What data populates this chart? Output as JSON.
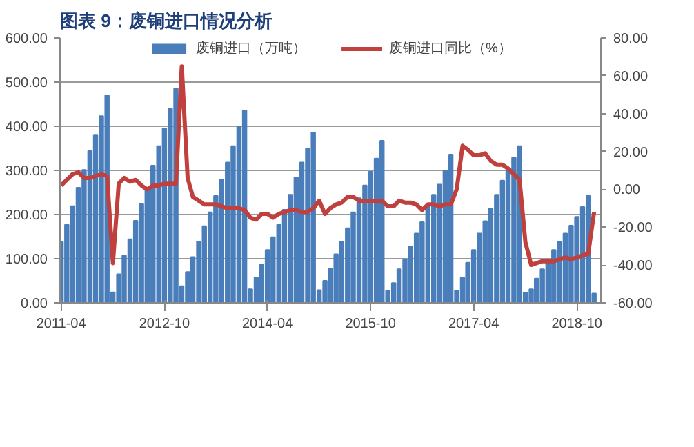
{
  "chart_data": {
    "type": "bar",
    "title": "图表 9：废铜进口情况分析",
    "x": [
      "2011-04",
      "2011-05",
      "2011-06",
      "2011-07",
      "2011-08",
      "2011-09",
      "2011-10",
      "2011-11",
      "2011-12",
      "2012-01",
      "2012-02",
      "2012-03",
      "2012-04",
      "2012-05",
      "2012-06",
      "2012-07",
      "2012-08",
      "2012-09",
      "2012-10",
      "2012-11",
      "2012-12",
      "2013-01",
      "2013-02",
      "2013-03",
      "2013-04",
      "2013-05",
      "2013-06",
      "2013-07",
      "2013-08",
      "2013-09",
      "2013-10",
      "2013-11",
      "2013-12",
      "2014-01",
      "2014-02",
      "2014-03",
      "2014-04",
      "2014-05",
      "2014-06",
      "2014-07",
      "2014-08",
      "2014-09",
      "2014-10",
      "2014-11",
      "2014-12",
      "2015-01",
      "2015-02",
      "2015-03",
      "2015-04",
      "2015-05",
      "2015-06",
      "2015-07",
      "2015-08",
      "2015-09",
      "2015-10",
      "2015-11",
      "2015-12",
      "2016-01",
      "2016-02",
      "2016-03",
      "2016-04",
      "2016-05",
      "2016-06",
      "2016-07",
      "2016-08",
      "2016-09",
      "2016-10",
      "2016-11",
      "2016-12",
      "2017-01",
      "2017-02",
      "2017-03",
      "2017-04",
      "2017-05",
      "2017-06",
      "2017-07",
      "2017-08",
      "2017-09",
      "2017-10",
      "2017-11",
      "2017-12",
      "2018-01",
      "2018-02",
      "2018-03",
      "2018-04",
      "2018-05",
      "2018-06",
      "2018-07",
      "2018-08",
      "2018-09",
      "2018-10",
      "2018-11",
      "2018-12",
      "2019-01"
    ],
    "series": [
      {
        "name": "废铜进口（万吨）",
        "color": "#4a7ebb",
        "values": [
          138,
          177,
          219,
          261,
          301,
          344,
          381,
          423,
          470,
          24,
          65,
          107,
          144,
          186,
          224,
          261,
          311,
          355,
          395,
          440,
          485,
          38,
          70,
          104,
          139,
          174,
          205,
          242,
          279,
          318,
          355,
          399,
          436,
          31,
          57,
          86,
          120,
          149,
          177,
          211,
          245,
          284,
          318,
          350,
          386,
          29,
          50,
          78,
          110,
          139,
          169,
          205,
          237,
          266,
          297,
          327,
          367,
          28,
          45,
          76,
          99,
          128,
          157,
          183,
          219,
          245,
          268,
          300,
          336,
          28,
          57,
          91,
          120,
          157,
          185,
          214,
          245,
          277,
          300,
          329,
          355,
          23,
          31,
          55,
          76,
          91,
          120,
          138,
          157,
          175,
          195,
          217,
          242,
          21
        ]
      },
      {
        "name": "废铜进口同比（%）",
        "type": "line",
        "axis": "y2",
        "color": "#c0403d",
        "values": [
          2,
          5,
          8,
          9,
          6,
          6,
          7,
          8,
          7,
          -39,
          3,
          6,
          4,
          5,
          2,
          0,
          2,
          2,
          3,
          3,
          3,
          65,
          6,
          -4,
          -6,
          -8,
          -8,
          -8,
          -9,
          -10,
          -10,
          -10,
          -11,
          -15,
          -16,
          -13,
          -13,
          -15,
          -13,
          -12,
          -11,
          -11,
          -12,
          -12,
          -10,
          -6,
          -13,
          -10,
          -8,
          -7,
          -4,
          -4,
          -6,
          -6,
          -6,
          -6,
          -6,
          -9,
          -9,
          -6,
          -7,
          -7,
          -8,
          -11,
          -8,
          -8,
          -9,
          -8,
          -8,
          0,
          23,
          21,
          18,
          18,
          19,
          15,
          13,
          13,
          11,
          8,
          5,
          -28,
          -40,
          -39,
          -38,
          -38,
          -38,
          -37,
          -36,
          -37,
          -36,
          -35,
          -34,
          -12
        ]
      }
    ],
    "xlim": [
      "2011-03-26",
      "2019-02-06"
    ],
    "xticks": [
      "2011-04",
      "2012-10",
      "2014-04",
      "2015-10",
      "2017-04",
      "2018-10"
    ],
    "ylim": [
      0,
      600
    ],
    "yticks": [
      {
        "value": 0,
        "label": "0.00"
      },
      {
        "value": 100,
        "label": "100.00"
      },
      {
        "value": 200,
        "label": "200.00"
      },
      {
        "value": 300,
        "label": "300.00"
      },
      {
        "value": 400,
        "label": "400.00"
      },
      {
        "value": 500,
        "label": "500.00"
      },
      {
        "value": 600,
        "label": "600.00"
      }
    ],
    "y2lim": [
      -60,
      80
    ],
    "y2ticks": [
      {
        "value": -60,
        "label": "-60.00"
      },
      {
        "value": -40,
        "label": "-40.00"
      },
      {
        "value": -20,
        "label": "-20.00"
      },
      {
        "value": 0,
        "label": "0.00"
      },
      {
        "value": 20,
        "label": "20.00"
      },
      {
        "value": 40,
        "label": "40.00"
      },
      {
        "value": 60,
        "label": "60.00"
      },
      {
        "value": 80,
        "label": "80.00"
      }
    ],
    "grid": "y",
    "legend": "top",
    "marker": "none",
    "line_style": "solid"
  }
}
